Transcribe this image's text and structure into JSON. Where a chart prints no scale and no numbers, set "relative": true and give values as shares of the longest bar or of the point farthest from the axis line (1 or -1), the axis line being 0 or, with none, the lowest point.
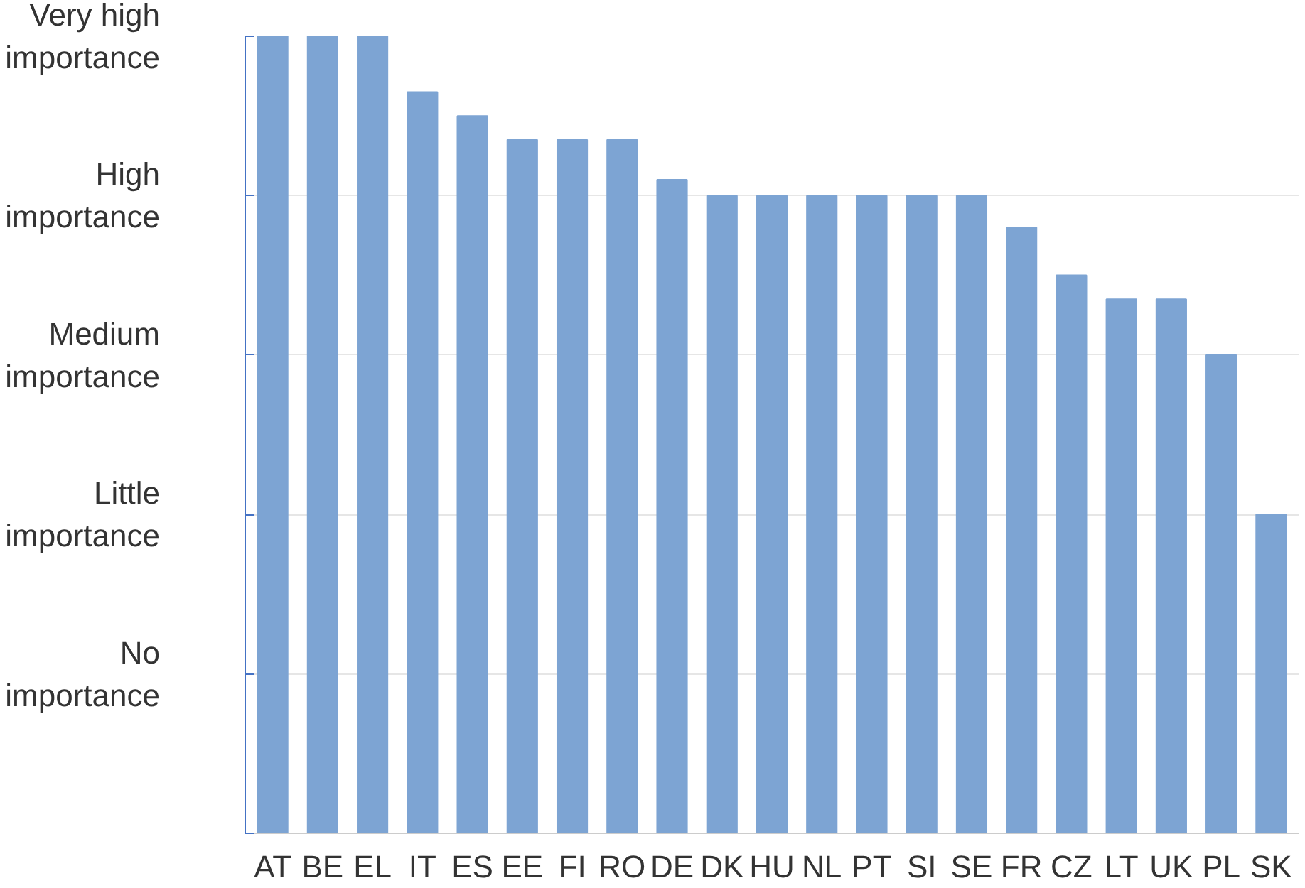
{
  "chart_data": {
    "type": "bar",
    "categories": [
      "AT",
      "BE",
      "EL",
      "IT",
      "ES",
      "EE",
      "FI",
      "RO",
      "DE",
      "DK",
      "HU",
      "NL",
      "PT",
      "SI",
      "SE",
      "FR",
      "CZ",
      "LT",
      "UK",
      "PL",
      "SK"
    ],
    "values": [
      1,
      1,
      1,
      0.93,
      0.9,
      0.87,
      0.87,
      0.87,
      0.82,
      0.8,
      0.8,
      0.8,
      0.8,
      0.8,
      0.8,
      0.76,
      0.7,
      0.67,
      0.67,
      0.6,
      0.4
    ],
    "relative": true,
    "color": "#7da4d3",
    "annotations": [
      "Very high\nimportance",
      "High\nimportance",
      "Medium\nimportance",
      "Little\nimportance",
      "No\nimportance"
    ],
    "grid": "y"
  }
}
